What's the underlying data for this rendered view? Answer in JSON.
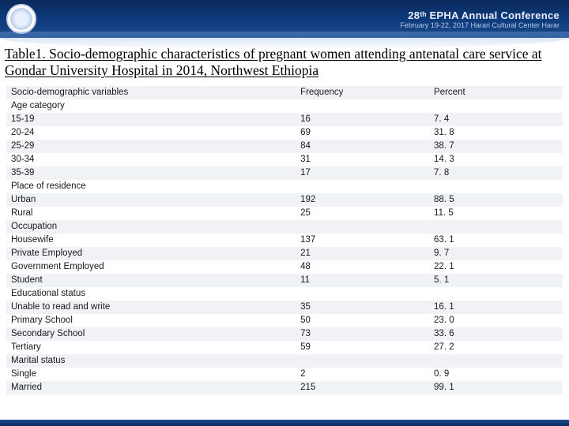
{
  "header": {
    "conference_title": "28ᵗʰ EPHA Annual Conference",
    "conference_subtitle": "February 19-22, 2017  Harari Cultural Center   Harar"
  },
  "title": "Table1. Socio-demographic characteristics of pregnant women attending antenatal care service at Gondar University Hospital in 2014, Northwest Ethiopia",
  "table": {
    "columns": [
      "Socio-demographic variables",
      "Frequency",
      "Percent"
    ],
    "sections": [
      {
        "heading": "Age category",
        "rows": [
          {
            "label": "15-19",
            "freq": "16",
            "pct": "7. 4"
          },
          {
            "label": "20-24",
            "freq": "69",
            "pct": "31. 8"
          },
          {
            "label": "25-29",
            "freq": "84",
            "pct": "38. 7"
          },
          {
            "label": "30-34",
            "freq": "31",
            "pct": "14. 3"
          },
          {
            "label": "35-39",
            "freq": "17",
            "pct": "7. 8"
          }
        ]
      },
      {
        "heading": "Place of residence",
        "rows": [
          {
            "label": "Urban",
            "freq": "192",
            "pct": "88. 5"
          },
          {
            "label": "Rural",
            "freq": "25",
            "pct": "11. 5"
          }
        ]
      },
      {
        "heading": "Occupation",
        "rows": [
          {
            "label": "Housewife",
            "freq": "137",
            "pct": "63. 1"
          },
          {
            "label": "Private Employed",
            "freq": "21",
            "pct": "9. 7"
          },
          {
            "label": "Government Employed",
            "freq": "48",
            "pct": "22. 1"
          },
          {
            "label": "Student",
            "freq": "11",
            "pct": "5. 1"
          }
        ]
      },
      {
        "heading": "Educational status",
        "rows": [
          {
            "label": "Unable to read and write",
            "freq": "35",
            "pct": "16. 1"
          },
          {
            "label": "Primary School",
            "freq": "50",
            "pct": "23. 0"
          },
          {
            "label": "Secondary School",
            "freq": "73",
            "pct": "33. 6"
          },
          {
            "label": "Tertiary",
            "freq": "59",
            "pct": "27. 2"
          }
        ]
      },
      {
        "heading": "Marital status",
        "rows": [
          {
            "label": "Single",
            "freq": "2",
            "pct": "0. 9"
          },
          {
            "label": "Married",
            "freq": "215",
            "pct": "99. 1"
          }
        ]
      }
    ]
  },
  "style": {
    "band_color": "#f0f2f5",
    "header_gradient": [
      "#0a2a5c",
      "#0d3a7a",
      "#1a4a8a"
    ],
    "title_font": "Times New Roman",
    "body_font": "Arial",
    "font_size_title": 17.5,
    "font_size_table": 11.5
  }
}
